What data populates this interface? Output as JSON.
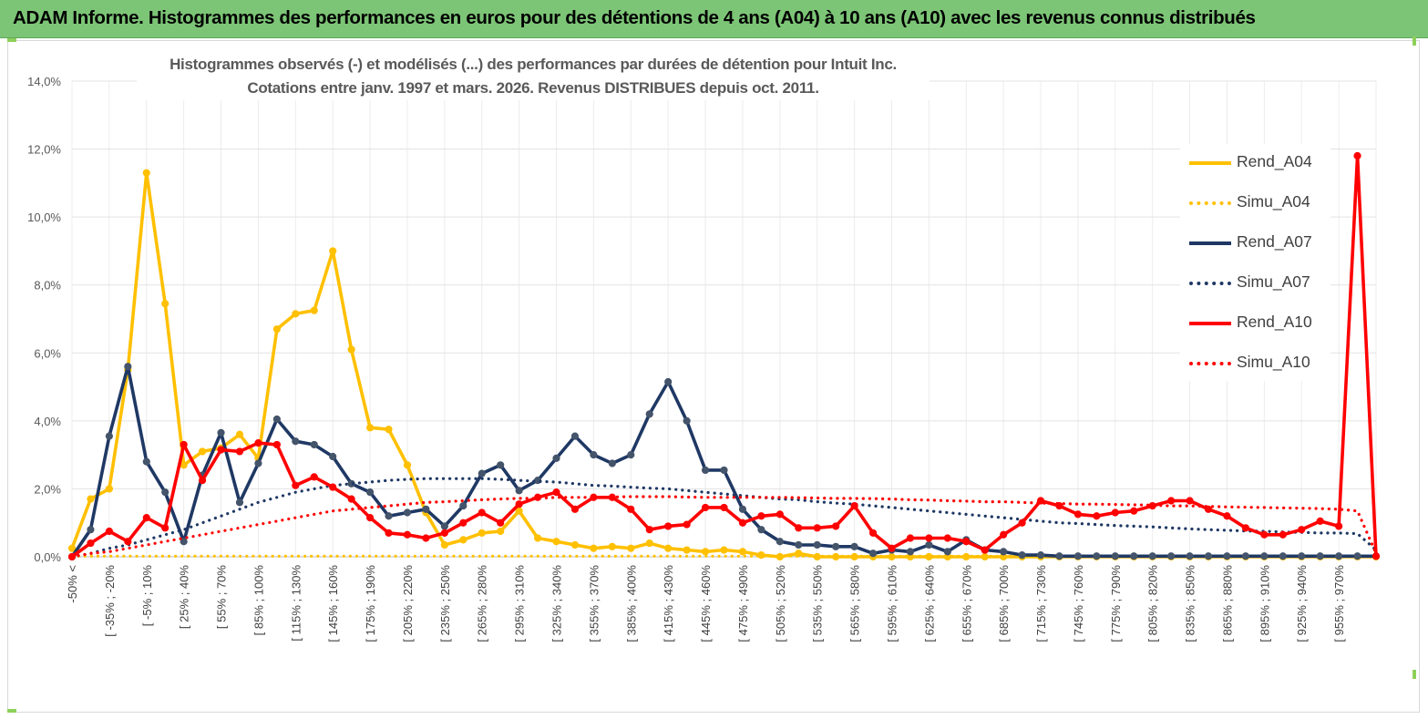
{
  "header": {
    "title": "ADAM Informe. Histogrammes des performances en euros pour des détentions de 4 ans (A04) à 10 ans (A10) avec les revenus connus distribués"
  },
  "chart_data": {
    "type": "line",
    "title_line1": "Histogrammes observés (-) et modélisés (...) des performances par durées de détention pour Intuit Inc.",
    "title_line2": "Cotations entre janv. 1997 et mars. 2026.  Revenus DISTRIBUES depuis oct. 2011.",
    "xlabel": "",
    "ylabel": "",
    "ylim": [
      0,
      14
    ],
    "yticks": [
      "0,0%",
      "2,0%",
      "4,0%",
      "6,0%",
      "8,0%",
      "10,0%",
      "12,0%",
      "14,0%"
    ],
    "x_labels": [
      "-50% <",
      "[ -35% ; -20%",
      "[ -5% ; 10%",
      "[ 25% ; 40%",
      "[ 55% ; 70%",
      "[ 85% ; 100%",
      "[ 115% ; 130%",
      "[ 145% ; 160%",
      "[ 175% ; 190%",
      "[ 205% ; 220%",
      "[ 235% ; 250%",
      "[ 265% ; 280%",
      "[ 295% ; 310%",
      "[ 325% ; 340%",
      "[ 355% ; 370%",
      "[ 385% ; 400%",
      "[ 415% ; 430%",
      "[ 445% ; 460%",
      "[ 475% ; 490%",
      "[ 505% ; 520%",
      "[ 535% ; 550%",
      "[ 565% ; 580%",
      "[ 595% ; 610%",
      "[ 625% ; 640%",
      "[ 655% ; 670%",
      "[ 685% ; 700%",
      "[ 715% ; 730%",
      "[ 745% ; 760%",
      "[ 775% ; 790%",
      "[ 805% ; 820%",
      "[ 835% ; 850%",
      "[ 865% ; 880%",
      "[ 895% ; 910%",
      "[ 925% ; 940%",
      "[ 955% ; 970%"
    ],
    "series": [
      {
        "name": "Rend_A04",
        "color": "#ffc000",
        "style": "solid",
        "markers": true,
        "values": [
          0.25,
          1.7,
          2.0,
          5.5,
          11.3,
          7.45,
          2.7,
          3.1,
          3.2,
          3.6,
          2.9,
          6.7,
          7.15,
          7.25,
          9.0,
          6.1,
          3.8,
          3.75,
          2.7,
          1.3,
          0.35,
          0.5,
          0.7,
          0.75,
          1.35,
          0.55,
          0.45,
          0.35,
          0.25,
          0.3,
          0.25,
          0.4,
          0.25,
          0.2,
          0.15,
          0.2,
          0.15,
          0.05,
          0,
          0.1,
          0,
          0,
          0,
          0,
          0,
          0,
          0,
          0,
          0,
          0,
          0,
          0,
          0,
          0,
          0,
          0,
          0,
          0,
          0,
          0,
          0,
          0,
          0,
          0,
          0,
          0,
          0,
          0,
          0,
          0,
          0
        ]
      },
      {
        "name": "Simu_A04",
        "color": "#ffc000",
        "style": "dotted",
        "markers": false,
        "values": [
          0.02,
          0.02,
          0.02,
          0.02,
          0.02,
          0.02,
          0.02,
          0.02,
          0.02,
          0.02,
          0.02,
          0.02,
          0.02,
          0.02,
          0.02,
          0.02,
          0.02,
          0.02,
          0.02,
          0.02,
          0.02,
          0.02,
          0.02,
          0.02,
          0.02,
          0.02,
          0.02,
          0.02,
          0.02,
          0.02,
          0.02,
          0.02,
          0.02,
          0.02,
          0.02,
          0.02,
          0.02,
          0.02,
          0.02,
          0.02,
          0.02,
          0.02,
          0.02,
          0.02,
          0.02,
          0.02,
          0.02,
          0.02,
          0.02,
          0.02,
          0.02,
          0.02,
          0.02,
          0.02,
          0.02,
          0.02,
          0.02,
          0.02,
          0.02,
          0.02,
          0.02,
          0.02,
          0.02,
          0.02,
          0.02,
          0.02,
          0.02,
          0.02,
          0.02,
          0.02,
          0.02
        ]
      },
      {
        "name": "Rend_A07",
        "color": "#1f3864",
        "style": "solid",
        "markers": true,
        "values": [
          0,
          0.8,
          3.55,
          5.6,
          2.8,
          1.9,
          0.45,
          2.4,
          3.65,
          1.6,
          2.75,
          4.05,
          3.4,
          3.3,
          2.95,
          2.15,
          1.9,
          1.2,
          1.3,
          1.4,
          0.9,
          1.5,
          2.45,
          2.7,
          1.95,
          2.25,
          2.9,
          3.55,
          3.0,
          2.75,
          3.0,
          4.2,
          5.15,
          4.0,
          2.55,
          2.55,
          1.4,
          0.8,
          0.45,
          0.35,
          0.35,
          0.3,
          0.3,
          0.1,
          0.2,
          0.15,
          0.35,
          0.15,
          0.5,
          0.2,
          0.15,
          0.05,
          0.05,
          0.02,
          0.02,
          0.02,
          0.02,
          0.02,
          0.02,
          0.02,
          0.02,
          0.02,
          0.02,
          0.02,
          0.02,
          0.02,
          0.02,
          0.02,
          0.02,
          0.02,
          0.02
        ]
      },
      {
        "name": "Simu_A07",
        "color": "#1f3864",
        "style": "dotted",
        "markers": false,
        "values": [
          0,
          0.1,
          0.25,
          0.35,
          0.5,
          0.65,
          0.8,
          1.0,
          1.2,
          1.4,
          1.6,
          1.75,
          1.9,
          2.0,
          2.1,
          2.15,
          2.2,
          2.25,
          2.28,
          2.3,
          2.3,
          2.3,
          2.3,
          2.28,
          2.25,
          2.22,
          2.2,
          2.15,
          2.1,
          2.08,
          2.05,
          2.02,
          2.0,
          1.95,
          1.9,
          1.85,
          1.8,
          1.75,
          1.7,
          1.68,
          1.62,
          1.58,
          1.55,
          1.5,
          1.45,
          1.4,
          1.35,
          1.3,
          1.25,
          1.2,
          1.15,
          1.1,
          1.05,
          1.0,
          0.98,
          0.95,
          0.92,
          0.9,
          0.88,
          0.85,
          0.82,
          0.8,
          0.78,
          0.76,
          0.75,
          0.73,
          0.72,
          0.7,
          0.7,
          0.68,
          0.2
        ]
      },
      {
        "name": "Rend_A10",
        "color": "#ff0000",
        "style": "solid",
        "markers": true,
        "values": [
          0,
          0.4,
          0.75,
          0.45,
          1.15,
          0.85,
          3.3,
          2.25,
          3.15,
          3.1,
          3.35,
          3.3,
          2.1,
          2.35,
          2.05,
          1.7,
          1.15,
          0.7,
          0.65,
          0.55,
          0.7,
          1.0,
          1.3,
          1.0,
          1.55,
          1.75,
          1.9,
          1.4,
          1.75,
          1.75,
          1.4,
          0.8,
          0.9,
          0.95,
          1.45,
          1.45,
          1.0,
          1.2,
          1.25,
          0.85,
          0.85,
          0.9,
          1.5,
          0.7,
          0.25,
          0.55,
          0.55,
          0.55,
          0.45,
          0.2,
          0.65,
          1.0,
          1.65,
          1.5,
          1.25,
          1.2,
          1.3,
          1.35,
          1.5,
          1.65,
          1.65,
          1.4,
          1.2,
          0.85,
          0.65,
          0.65,
          0.8,
          1.05,
          0.9,
          11.8,
          0.02
        ]
      },
      {
        "name": "Simu_A10",
        "color": "#ff0000",
        "style": "dotted",
        "markers": false,
        "values": [
          0,
          0.1,
          0.15,
          0.25,
          0.35,
          0.45,
          0.55,
          0.65,
          0.75,
          0.85,
          0.95,
          1.05,
          1.15,
          1.25,
          1.35,
          1.4,
          1.45,
          1.5,
          1.55,
          1.6,
          1.62,
          1.65,
          1.68,
          1.7,
          1.72,
          1.72,
          1.75,
          1.75,
          1.75,
          1.76,
          1.77,
          1.77,
          1.77,
          1.76,
          1.75,
          1.75,
          1.75,
          1.75,
          1.75,
          1.74,
          1.73,
          1.72,
          1.72,
          1.71,
          1.7,
          1.68,
          1.67,
          1.65,
          1.64,
          1.62,
          1.62,
          1.6,
          1.58,
          1.57,
          1.55,
          1.55,
          1.54,
          1.53,
          1.52,
          1.5,
          1.5,
          1.48,
          1.47,
          1.46,
          1.45,
          1.44,
          1.43,
          1.42,
          1.4,
          1.35,
          0.1
        ]
      }
    ],
    "legend_position": "right"
  }
}
